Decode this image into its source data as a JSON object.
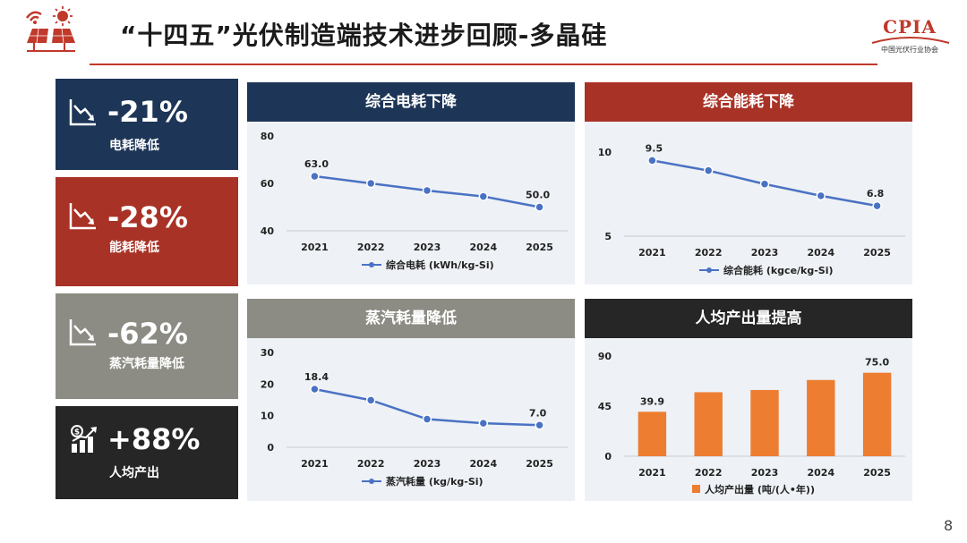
{
  "header": {
    "title": "“十四五”光伏制造端技术进步回顾-多晶硅",
    "org_logo_text": "CPIA",
    "org_logo_sub": "中国光伏行业协会",
    "page_number": "8",
    "colors": {
      "navy": "#1d3557",
      "red": "#a93226",
      "gray": "#8c8c84",
      "dark": "#262626",
      "line": "#4a72c4",
      "bar": "#ed7d31",
      "accent": "#c0392b"
    }
  },
  "stats": [
    {
      "value": "-21%",
      "label": "电耗降低",
      "icon": "trend-down-chart-icon"
    },
    {
      "value": "-28%",
      "label": "能耗降低",
      "icon": "trend-down-chart-icon"
    },
    {
      "value": "-62%",
      "label": "蒸汽耗量降低",
      "icon": "trend-down-chart-icon"
    },
    {
      "value": "+88%",
      "label": "人均产出",
      "icon": "money-growth-chart-icon"
    }
  ],
  "chart_data": [
    {
      "type": "line",
      "title": "综合电耗下降",
      "categories": [
        "2021",
        "2022",
        "2023",
        "2024",
        "2025"
      ],
      "series": [
        {
          "name": "综合电耗 (kWh/kg-Si)",
          "values": [
            63.0,
            60.0,
            57.0,
            54.5,
            50.0
          ]
        }
      ],
      "data_labels": [
        {
          "index": 0,
          "text": "63.0"
        },
        {
          "index": 4,
          "text": "50.0"
        }
      ],
      "ylim": [
        40,
        80
      ],
      "yticks": [
        40,
        60,
        80
      ],
      "legend": "bottom"
    },
    {
      "type": "line",
      "title": "综合能耗下降",
      "categories": [
        "2021",
        "2022",
        "2023",
        "2024",
        "2025"
      ],
      "series": [
        {
          "name": "综合能耗 (kgce/kg-Si)",
          "values": [
            9.5,
            8.9,
            8.1,
            7.4,
            6.8
          ]
        }
      ],
      "data_labels": [
        {
          "index": 0,
          "text": "9.5"
        },
        {
          "index": 4,
          "text": "6.8"
        }
      ],
      "ylim": [
        5,
        10
      ],
      "yticks": [
        5,
        10
      ],
      "legend": "bottom"
    },
    {
      "type": "line",
      "title": "蒸汽耗量降低",
      "categories": [
        "2021",
        "2022",
        "2023",
        "2024",
        "2025"
      ],
      "series": [
        {
          "name": "蒸汽耗量 (kg/kg-Si)",
          "values": [
            18.4,
            14.9,
            8.9,
            7.6,
            7.0
          ]
        }
      ],
      "data_labels": [
        {
          "index": 0,
          "text": "18.4"
        },
        {
          "index": 4,
          "text": "7.0"
        }
      ],
      "ylim": [
        0,
        30
      ],
      "yticks": [
        0,
        10,
        20,
        30
      ],
      "legend": "bottom"
    },
    {
      "type": "bar",
      "title": "人均产出量提高",
      "categories": [
        "2021",
        "2022",
        "2023",
        "2024",
        "2025"
      ],
      "series": [
        {
          "name": "人均产出量 (吨/(人•年))",
          "values": [
            39.9,
            57.5,
            59.5,
            68.5,
            75.0
          ]
        }
      ],
      "data_labels": [
        {
          "index": 0,
          "text": "39.9"
        },
        {
          "index": 4,
          "text": "75.0"
        }
      ],
      "ylim": [
        0,
        90
      ],
      "yticks": [
        0,
        45,
        90
      ],
      "legend": "bottom"
    }
  ]
}
